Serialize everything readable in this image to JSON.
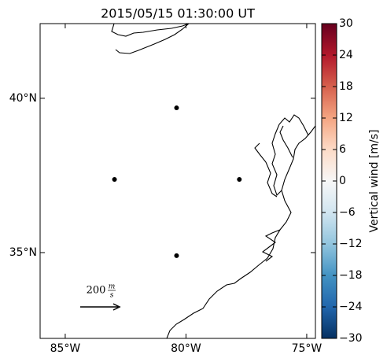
{
  "chart_data": {
    "type": "scatter",
    "title": "2015/05/15 01:30:00 UT",
    "x": [
      -80.39,
      -82.96,
      -77.79,
      -80.39
    ],
    "values": [
      39.69,
      37.37,
      37.37,
      34.9
    ],
    "color": "#000000",
    "xlim": [
      -86.04,
      -74.64
    ],
    "ylim": [
      32.22,
      42.42
    ],
    "xticks": [
      {
        "value": -85,
        "label": "85°W"
      },
      {
        "value": -80,
        "label": "80°W"
      },
      {
        "value": -75,
        "label": "75°W"
      }
    ],
    "yticks": [
      {
        "value": 35,
        "label": "35°N"
      },
      {
        "value": 40,
        "label": "40°N"
      }
    ],
    "colorbar": {
      "label": "Vertical wind [m/s]",
      "lim": [
        -30,
        30
      ],
      "ticks": [
        {
          "value": -30,
          "label": "−30"
        },
        {
          "value": -24,
          "label": "−24"
        },
        {
          "value": -18,
          "label": "−18"
        },
        {
          "value": -12,
          "label": "−12"
        },
        {
          "value": -6,
          "label": "−6"
        },
        0,
        6,
        12,
        18,
        24,
        30
      ]
    },
    "quiver_key": {
      "value": 200,
      "unit_numerator": "m",
      "unit_denominator": "s"
    }
  }
}
